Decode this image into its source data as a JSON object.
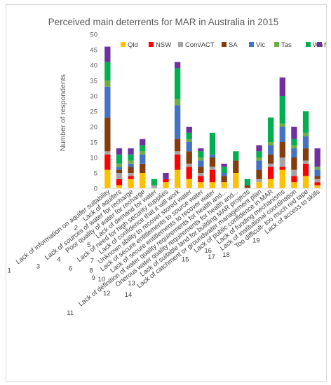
{
  "chart_data": {
    "type": "bar",
    "stacked": true,
    "title": "Perceived main deterrents for MAR in Australia in 2015",
    "ylabel": "Number of respondents",
    "xlabel": "",
    "ylim": [
      0,
      50
    ],
    "yticks": [
      0,
      5,
      10,
      15,
      20,
      25,
      30,
      35,
      40,
      45,
      50
    ],
    "grid": false,
    "legend_position": "top",
    "categories": [
      "Lack of information on aquifer suitability",
      "Lack of aquifers",
      "Lack of sources of water for recharge",
      "Poor quality of water for recharge",
      "Lack of demand for water",
      "Lack of need for high security supplies",
      "Lack of confidence that it will work",
      "Unknown ability to recover stored water",
      "Lack of secure entitlements to source water",
      "Lack of secure entitlements to recover water",
      "Lack of definition of water quality requirements for health and...",
      "Onerous water quality requirements for health and...",
      "Lack of suitable land for building MAR projects",
      "Lack of catchment or groundwater management plan",
      "Lack of public confidence in MAR",
      "Lack of funding mechanisms",
      "Lack of institutional coordination",
      "Too difficult- too much red tape",
      "Lack of access to skills"
    ],
    "category_numbers": [
      "1",
      "2",
      "3",
      "4",
      "5",
      "6",
      "7",
      "8",
      "9",
      "10",
      "11",
      "12",
      "13",
      "14",
      "15",
      "16",
      "17",
      "18",
      "19"
    ],
    "series": [
      {
        "name": "Qld",
        "color": "#ffc000",
        "values": [
          6,
          1,
          3,
          5,
          0,
          2,
          6,
          3,
          2,
          2,
          2,
          5,
          0,
          2,
          3,
          6,
          2,
          4,
          1
        ]
      },
      {
        "name": "NSW",
        "color": "#ff0000",
        "values": [
          5,
          2,
          1,
          0,
          0,
          1,
          5,
          4,
          2,
          4,
          0,
          0,
          0,
          0,
          4,
          1,
          2,
          4,
          1
        ]
      },
      {
        "name": "Com/ACT",
        "color": "#a5a5a5",
        "values": [
          1,
          2,
          1,
          0,
          1,
          0,
          1,
          1,
          1,
          1,
          0,
          0,
          0,
          1,
          1,
          3,
          2,
          1,
          1
        ]
      },
      {
        "name": "SA",
        "color": "#843c0c",
        "values": [
          11,
          1,
          2,
          3,
          0,
          0,
          4,
          4,
          2,
          3,
          2,
          4,
          1,
          3,
          3,
          5,
          4,
          4,
          1
        ]
      },
      {
        "name": "Vic",
        "color": "#4472c4",
        "values": [
          10,
          1,
          1,
          3,
          0,
          0,
          11,
          3,
          2,
          1,
          1,
          0,
          0,
          3,
          3,
          5,
          3,
          4,
          2
        ]
      },
      {
        "name": "Tas",
        "color": "#70ad47",
        "values": [
          2,
          1,
          1,
          1,
          0,
          0,
          2,
          1,
          1,
          0,
          0,
          0,
          0,
          1,
          1,
          1,
          1,
          1,
          1
        ]
      },
      {
        "name": "WA",
        "color": "#00b050",
        "values": [
          6,
          3,
          2,
          2,
          2,
          0,
          10,
          2,
          2,
          7,
          2,
          3,
          2,
          2,
          8,
          9,
          2,
          7,
          0
        ]
      },
      {
        "name": "NT",
        "color": "#7030a0",
        "values": [
          5,
          2,
          2,
          2,
          0,
          2,
          2,
          2,
          1,
          0,
          1,
          0,
          0,
          2,
          0,
          6,
          4,
          0,
          6
        ]
      }
    ]
  }
}
